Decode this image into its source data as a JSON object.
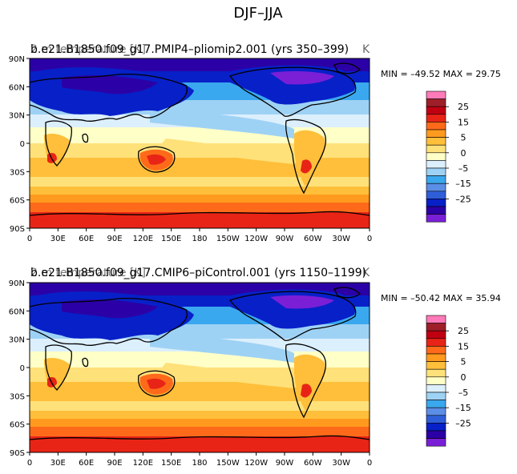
{
  "figure_title": "DJF–JJA",
  "colors": {
    "levels": [
      "#7a1fd6",
      "#2b00a6",
      "#0820c8",
      "#2f5fd8",
      "#5b8ee6",
      "#3aa8ee",
      "#9ed2f5",
      "#dceffd",
      "#ffffc8",
      "#ffe17a",
      "#ffbf3a",
      "#ff9a1e",
      "#ff6a1a",
      "#e82416",
      "#c00012",
      "#9e1f28",
      "#ff7ab8"
    ],
    "land_outline": "#000000"
  },
  "chart_data": [
    {
      "type": "heatmap",
      "title_overlap": "b.e21.B1850.f09_g17.PMIP4–pliomip2.001 (yrs 350–399)",
      "title_left_faint": "2 m temperature [K]",
      "title_right_faint": "K",
      "stats": "MIN = –49.52 MAX = 29.75",
      "stats_min": -49.52,
      "stats_max": 29.75,
      "x_ticks": [
        "0",
        "30E",
        "60E",
        "90E",
        "120E",
        "150E",
        "180",
        "150W",
        "120W",
        "90W",
        "60W",
        "30W",
        "0"
      ],
      "y_ticks": [
        "90N",
        "60N",
        "30N",
        "0",
        "30S",
        "60S",
        "90S"
      ],
      "colorbar_labels": [
        "25",
        "15",
        "5",
        "0",
        "–5",
        "–15",
        "–25"
      ],
      "colorbar_levels": [
        -30,
        -25,
        -20,
        -15,
        -10,
        -5,
        -2,
        0,
        2,
        5,
        10,
        15,
        20,
        25,
        30,
        35
      ],
      "xlim": [
        0,
        360
      ],
      "ylim": [
        -90,
        90
      ]
    },
    {
      "type": "heatmap",
      "title_overlap": "b.e21.B1850.f09_g17.CMIP6–piControl.001 (yrs 1150–1199)",
      "title_left_faint": "2 m temperature [K]",
      "title_right_faint": "K",
      "stats": "MIN = –50.42 MAX = 35.94",
      "stats_min": -50.42,
      "stats_max": 35.94,
      "x_ticks": [
        "0",
        "30E",
        "60E",
        "90E",
        "120E",
        "150E",
        "180",
        "150W",
        "120W",
        "90W",
        "60W",
        "30W",
        "0"
      ],
      "y_ticks": [
        "90N",
        "60N",
        "30N",
        "0",
        "30S",
        "60S",
        "90S"
      ],
      "colorbar_labels": [
        "25",
        "15",
        "5",
        "0",
        "–5",
        "–15",
        "–25"
      ],
      "colorbar_levels": [
        -30,
        -25,
        -20,
        -15,
        -10,
        -5,
        -2,
        0,
        2,
        5,
        10,
        15,
        20,
        25,
        30,
        35
      ],
      "xlim": [
        0,
        360
      ],
      "ylim": [
        -90,
        90
      ]
    }
  ]
}
